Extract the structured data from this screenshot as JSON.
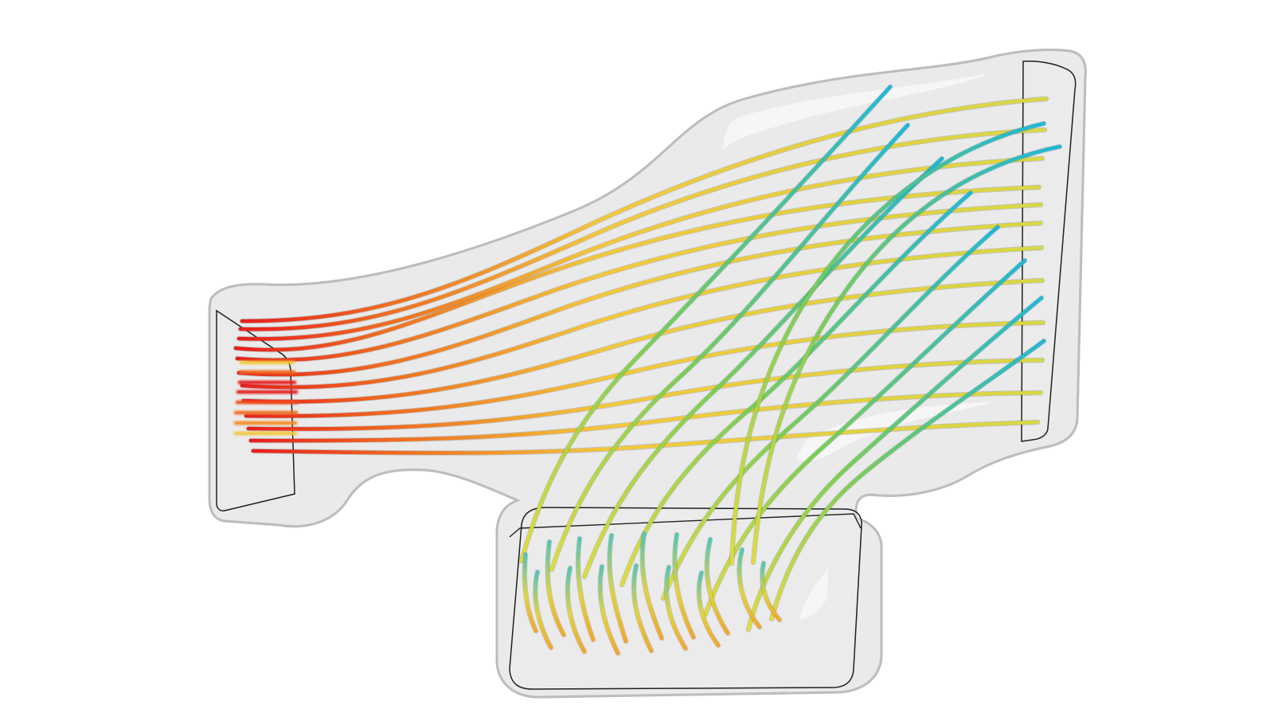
{
  "scene": {
    "type": "3d-cfd-streamline-visualization",
    "background": "#ffffff",
    "duct_material": "translucent-gray",
    "streamline_color_scale": [
      "#0fb6d9",
      "#42c97f",
      "#a6d53a",
      "#f0dc3a",
      "#f7a628",
      "#ef4d1d",
      "#e61e1e"
    ],
    "regions": [
      {
        "name": "inlet-left",
        "color_emphasis": "red-orange-yellow"
      },
      {
        "name": "outlet-right",
        "color_emphasis": "yellow-cyan"
      },
      {
        "name": "outlet-bottom",
        "color_emphasis": "yellow-orange-cyan"
      }
    ]
  }
}
